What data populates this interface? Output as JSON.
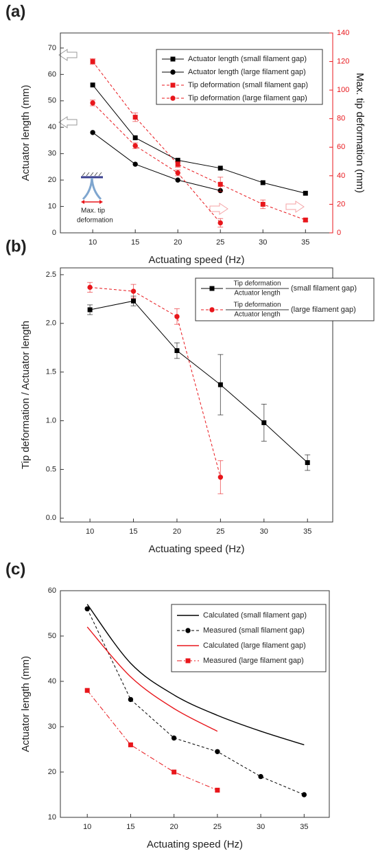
{
  "chart_data": [
    {
      "type": "line",
      "panel": "(a)",
      "x_label": "Actuating speed (Hz)",
      "y_label": "Actuator length (mm)",
      "y2_label": "Max. tip deformation (mm)",
      "y2color": "#e8161b",
      "xlim": [
        6.2,
        38.2
      ],
      "xticks": [
        10,
        15,
        20,
        25,
        30,
        35
      ],
      "ylim": [
        0,
        75.7
      ],
      "yticks": [
        0,
        10,
        20,
        30,
        40,
        50,
        60,
        70
      ],
      "y2lim": [
        0,
        140
      ],
      "y2ticks": [
        0,
        20,
        40,
        60,
        80,
        100,
        120,
        140
      ],
      "legend": "upper right",
      "annotation": [
        "Max. tip",
        "deformation"
      ],
      "series": [
        {
          "name": "Actuator length (small filament gap)",
          "color": "#000000",
          "marker": "square",
          "dash": "solid",
          "x": [
            10,
            15,
            20,
            25,
            30,
            35
          ],
          "values": [
            56,
            36,
            27.5,
            24.5,
            19,
            15
          ]
        },
        {
          "name": "Actuator length (large filament gap)",
          "color": "#000000",
          "marker": "circle",
          "dash": "solid",
          "x": [
            10,
            15,
            20,
            25
          ],
          "values": [
            38,
            26,
            20,
            16
          ]
        },
        {
          "name": "Tip deformation (small filament gap)",
          "color": "#e8161b",
          "marker": "square",
          "dash": "dashed",
          "axis": "y2",
          "x": [
            10,
            15,
            20,
            25,
            30,
            35
          ],
          "values": [
            120,
            81,
            48,
            34,
            20,
            9
          ],
          "errors": [
            2,
            3,
            2,
            5,
            3,
            1
          ]
        },
        {
          "name": "Tip deformation (large filament gap)",
          "color": "#e8161b",
          "marker": "circle",
          "dash": "dashed",
          "axis": "y2",
          "x": [
            10,
            15,
            20,
            25
          ],
          "values": [
            91,
            61,
            42,
            7
          ],
          "errors": [
            2,
            2,
            2,
            3
          ]
        }
      ]
    },
    {
      "type": "line",
      "panel": "(b)",
      "x_label": "Actuating speed (Hz)",
      "y_label": "Tip deformation / Actuator length",
      "xlim": [
        6.6,
        37.9
      ],
      "xticks": [
        10,
        15,
        20,
        25,
        30,
        35
      ],
      "ylim": [
        -0.04,
        2.57
      ],
      "yticks": [
        {
          "value": 0,
          "label": "0.0"
        },
        0.5,
        {
          "value": 1,
          "label": "1.0"
        },
        1.5,
        {
          "value": 2,
          "label": "2.0"
        },
        2.5
      ],
      "legend": "upper right",
      "series": [
        {
          "name": "(small filament gap)",
          "fraction": [
            "Tip deformation",
            "Actuator length"
          ],
          "color": "#000000",
          "marker": "square",
          "dash": "solid",
          "x": [
            10,
            15,
            20,
            25,
            30,
            35
          ],
          "values": [
            2.14,
            2.23,
            1.72,
            1.37,
            0.98,
            0.57
          ],
          "errors": [
            0.05,
            0.05,
            0.08,
            0.31,
            0.19,
            0.08
          ]
        },
        {
          "name": "(large filament gap)",
          "fraction": [
            "Tip deformation",
            "Actuator length"
          ],
          "color": "#e8161b",
          "marker": "circle",
          "dash": "dashed",
          "x": [
            10,
            15,
            20,
            25
          ],
          "values": [
            2.37,
            2.33,
            2.07,
            0.42
          ],
          "errors": [
            0.05,
            0.07,
            0.08,
            0.17
          ]
        }
      ]
    },
    {
      "type": "line",
      "panel": "(c)",
      "x_label": "Actuating speed (Hz)",
      "y_label": "Actuator length (mm)",
      "xlim": [
        6.9,
        37.9
      ],
      "xticks": [
        10,
        15,
        20,
        25,
        30,
        35
      ],
      "ylim": [
        10,
        60
      ],
      "yticks": [
        10,
        20,
        30,
        40,
        50,
        60
      ],
      "legend": "upper right",
      "series": [
        {
          "name": "Calculated (small filament gap)",
          "color": "#000000",
          "marker": "none",
          "dash": "solid",
          "x": [
            10,
            15,
            20,
            25,
            30,
            35
          ],
          "values": [
            57,
            44,
            37,
            32.5,
            29,
            26
          ]
        },
        {
          "name": "Measured (small filament gap)",
          "color": "#000000",
          "marker": "circle",
          "dash": "dashed",
          "x": [
            10,
            15,
            20,
            25,
            30,
            35
          ],
          "values": [
            56,
            36,
            27.5,
            24.5,
            19,
            15
          ]
        },
        {
          "name": "Calculated (large filament gap)",
          "color": "#e8161b",
          "marker": "none",
          "dash": "solid",
          "x": [
            10,
            15,
            20,
            25
          ],
          "values": [
            52,
            41,
            34,
            29
          ]
        },
        {
          "name": "Measured (large filament gap)",
          "color": "#e8161b",
          "marker": "square",
          "dash": "dashdot",
          "x": [
            10,
            15,
            20,
            25
          ],
          "values": [
            38,
            26,
            20,
            16
          ]
        }
      ]
    }
  ]
}
